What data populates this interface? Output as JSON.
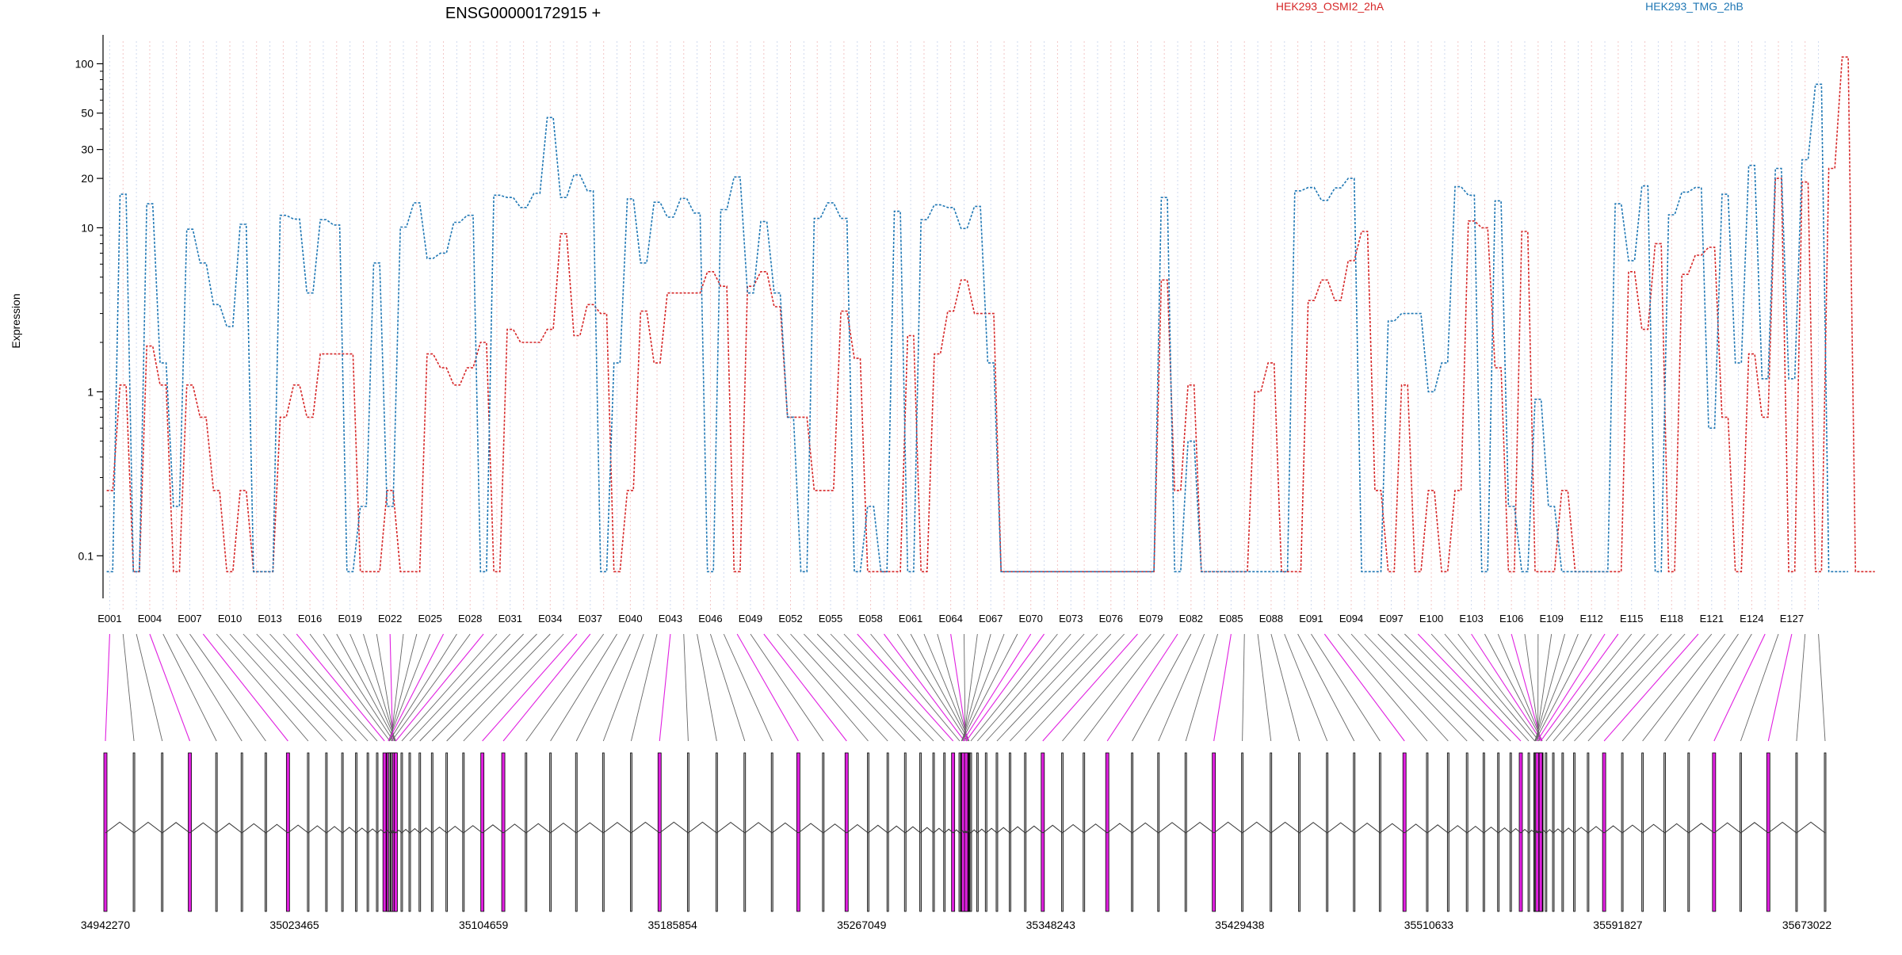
{
  "chart_data": {
    "type": "line",
    "title": "ENSG00000172915 +",
    "ylabel": "Expression",
    "xlabel": "",
    "yscale": "log",
    "ylim": [
      0.07,
      120
    ],
    "yticks": [
      0.1,
      1,
      10,
      20,
      30,
      50,
      100
    ],
    "grid": true,
    "legend_position": "top",
    "exon_count": 129,
    "x_tick_labels": [
      "E001",
      "E004",
      "E007",
      "E010",
      "E013",
      "E016",
      "E019",
      "E022",
      "E025",
      "E028",
      "E031",
      "E034",
      "E037",
      "E040",
      "E043",
      "E046",
      "E049",
      "E052",
      "E055",
      "E058",
      "E061",
      "E064",
      "E067",
      "E070",
      "E073",
      "E076",
      "E079",
      "E082",
      "E085",
      "E088",
      "E091",
      "E094",
      "E097",
      "E100",
      "E103",
      "E106",
      "E109",
      "E112",
      "E115",
      "E118",
      "E121",
      "E124",
      "E127"
    ],
    "series": [
      {
        "name": "HEK293_OSMI2_2hA",
        "color": "#d62728",
        "values": [
          0.25,
          1.1,
          0.08,
          1.9,
          1.1,
          0.08,
          1.1,
          0.7,
          0.25,
          0.08,
          0.25,
          0.08,
          0.08,
          0.7,
          1.1,
          0.7,
          1.7,
          1.7,
          1.7,
          0.08,
          0.08,
          0.25,
          0.08,
          0.08,
          1.7,
          1.4,
          1.1,
          1.4,
          2.0,
          0.08,
          2.4,
          2.0,
          2.0,
          2.4,
          9.2,
          2.2,
          3.4,
          3.0,
          0.08,
          0.25,
          3.1,
          1.5,
          4.0,
          4.0,
          4.0,
          5.4,
          4.4,
          0.08,
          4.4,
          5.4,
          3.3,
          0.7,
          0.7,
          0.25,
          0.25,
          3.1,
          1.6,
          0.08,
          0.08,
          0.08,
          2.2,
          0.08,
          1.7,
          3.1,
          4.8,
          3.0,
          3.0,
          0.08,
          0.08,
          0.08,
          0.08,
          0.08,
          0.08,
          0.08,
          0.08,
          0.08,
          0.08,
          0.08,
          0.08,
          4.8,
          0.25,
          1.1,
          0.08,
          0.08,
          0.08,
          0.08,
          1.0,
          1.5,
          0.08,
          0.08,
          3.6,
          4.8,
          3.6,
          6.3,
          9.5,
          0.25,
          0.08,
          1.1,
          0.08,
          0.25,
          0.08,
          0.25,
          11,
          10,
          1.4,
          0.08,
          9.5,
          0.08,
          0.08,
          0.25,
          0.08,
          0.08,
          0.08,
          0.08,
          5.4,
          2.4,
          8.0,
          0.08,
          5.2,
          6.8,
          7.6,
          0.7,
          0.08,
          1.7,
          0.7,
          20,
          0.08,
          19,
          0.08,
          23,
          110,
          0.08,
          0.08
        ],
        "style": "dotted step"
      },
      {
        "name": "HEK293_TMG_2hB",
        "color": "#1f77b4",
        "values": [
          0.08,
          16,
          0.08,
          14,
          1.5,
          0.2,
          9.8,
          6.1,
          3.4,
          2.5,
          10.5,
          0.08,
          0.08,
          11.9,
          11.3,
          4.0,
          11.2,
          10.4,
          0.08,
          0.2,
          6.1,
          0.2,
          10.1,
          14.2,
          6.5,
          7.0,
          10.8,
          11.9,
          0.08,
          15.8,
          15.3,
          13.3,
          16.2,
          47,
          15.3,
          21,
          16.8,
          0.08,
          1.5,
          15.0,
          6.1,
          14.3,
          11.6,
          15.1,
          12.3,
          0.08,
          12.9,
          20.4,
          4.0,
          10.9,
          4.0,
          0.7,
          0.08,
          11.4,
          14.2,
          11.4,
          0.08,
          0.2,
          0.08,
          12.6,
          0.08,
          11.2,
          13.8,
          13.3,
          9.9,
          13.5,
          1.5,
          0.08,
          0.08,
          0.08,
          0.08,
          0.08,
          0.08,
          0.08,
          0.08,
          0.08,
          0.08,
          0.08,
          0.08,
          15.3,
          0.08,
          0.5,
          0.08,
          0.08,
          0.08,
          0.08,
          0.08,
          0.08,
          0.08,
          16.8,
          17.6,
          14.7,
          17.5,
          20,
          0.08,
          0.08,
          2.7,
          3.0,
          3.0,
          1.0,
          1.5,
          17.8,
          15.8,
          0.08,
          14.6,
          0.2,
          0.08,
          0.9,
          0.2,
          0.08,
          0.08,
          0.08,
          0.08,
          14.0,
          6.3,
          18.0,
          0.08,
          12.0,
          16.5,
          17.6,
          0.6,
          16.0,
          1.5,
          24,
          1.2,
          23,
          1.2,
          26,
          75,
          0.08,
          0.08
        ],
        "style": "dotted step"
      }
    ]
  },
  "gene_model": {
    "coordinate_labels": [
      "34942270",
      "35023465",
      "35104659",
      "35185854",
      "35267049",
      "35348243",
      "35429438",
      "35510633",
      "35591827",
      "35673022"
    ],
    "highlight_color": "#e020e0",
    "intron_color": "#333333"
  }
}
